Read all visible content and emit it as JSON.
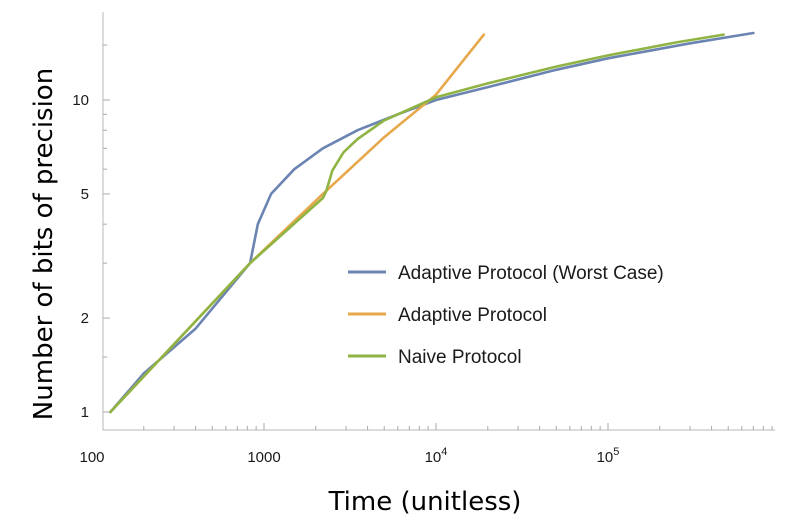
{
  "chart_data": {
    "type": "line",
    "title": "",
    "xlabel": "Time (unitless)",
    "ylabel": "Number of bits of precision",
    "xscale": "log",
    "yscale": "log",
    "xlim": [
      100,
      750000
    ],
    "ylim": [
      0.95,
      18
    ],
    "x_tick_labels": [
      {
        "value": 100,
        "label": "100"
      },
      {
        "value": 1000,
        "label": "1000"
      },
      {
        "value": 10000,
        "base": "10",
        "exp": "4"
      },
      {
        "value": 100000,
        "base": "10",
        "exp": "5"
      }
    ],
    "y_tick_labels": [
      {
        "value": 1,
        "label": "1"
      },
      {
        "value": 2,
        "label": "2"
      },
      {
        "value": 5,
        "label": "5"
      },
      {
        "value": 10,
        "label": "10"
      }
    ],
    "legend_position": "lower-right",
    "series": [
      {
        "name": "Adaptive Protocol (Worst Case)",
        "color": "#6B84B2",
        "points": [
          [
            128,
            1
          ],
          [
            200,
            1.33
          ],
          [
            400,
            1.85
          ],
          [
            830,
            3.0
          ],
          [
            920,
            4.0
          ],
          [
            1100,
            5.0
          ],
          [
            1500,
            6.0
          ],
          [
            2200,
            7.0
          ],
          [
            3500,
            8.0
          ],
          [
            6000,
            9.0
          ],
          [
            10000,
            10.0
          ],
          [
            20000,
            11.0
          ],
          [
            50000,
            12.5
          ],
          [
            100000,
            13.6
          ],
          [
            300000,
            15.2
          ],
          [
            700000,
            16.4
          ]
        ]
      },
      {
        "name": "Adaptive Protocol",
        "color": "#E6A84A",
        "points": [
          [
            128,
            1
          ],
          [
            830,
            3.0
          ],
          [
            2200,
            5.0
          ],
          [
            5000,
            7.6
          ],
          [
            10000,
            10.4
          ],
          [
            19000,
            16.2
          ]
        ]
      },
      {
        "name": "Naive Protocol",
        "color": "#8FB443",
        "points": [
          [
            128,
            1
          ],
          [
            830,
            3.0
          ],
          [
            2200,
            4.85
          ],
          [
            2300,
            5.1
          ],
          [
            2500,
            5.95
          ],
          [
            2900,
            6.8
          ],
          [
            3500,
            7.5
          ],
          [
            5000,
            8.6
          ],
          [
            10000,
            10.2
          ],
          [
            20000,
            11.3
          ],
          [
            50000,
            12.8
          ],
          [
            100000,
            13.9
          ],
          [
            250000,
            15.3
          ],
          [
            470000,
            16.2
          ]
        ]
      }
    ]
  }
}
